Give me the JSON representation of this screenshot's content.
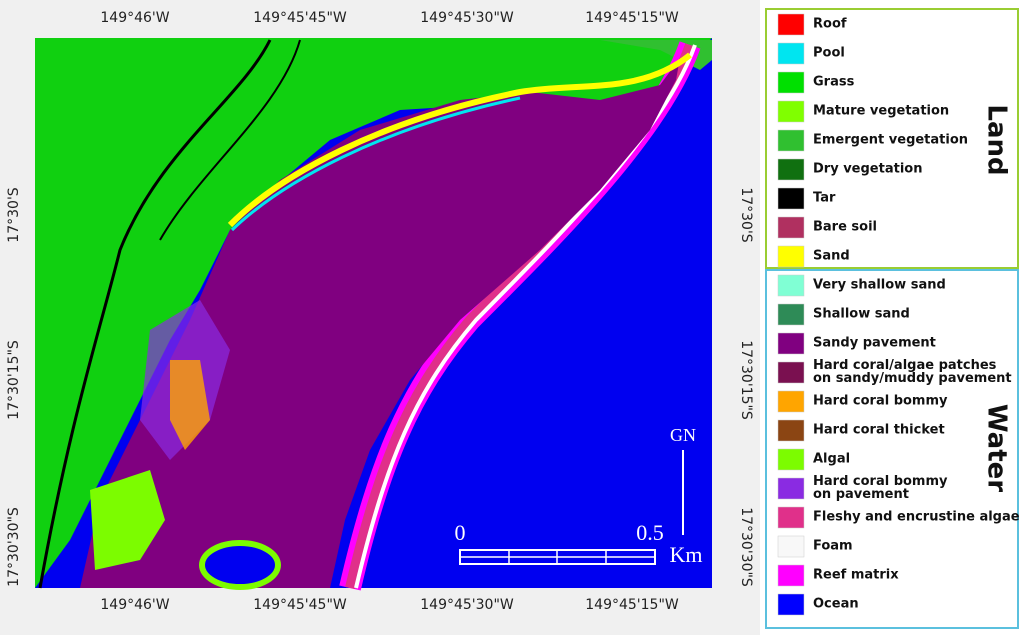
{
  "map": {
    "top_labels": [
      "149°46'W",
      "149°45'45\"W",
      "149°45'30\"W",
      "149°45'15\"W"
    ],
    "bottom_labels": [
      "149°46'W",
      "149°45'45\"W",
      "149°45'30\"W",
      "149°45'15\"W"
    ],
    "left_labels": [
      "17°30'S",
      "17°30'15\"S",
      "17°30'30\"S"
    ],
    "right_labels": [
      "17°30'S",
      "17°30'15\"S",
      "17°30'30\"S"
    ],
    "scale": {
      "start": "0",
      "end": "0.5",
      "unit": "Km"
    },
    "north": "GN"
  },
  "legend": {
    "groups": [
      {
        "name": "Land",
        "items": [
          {
            "label": [
              "Roof"
            ],
            "color": "#ff0000"
          },
          {
            "label": [
              "Pool"
            ],
            "color": "#00e5f0"
          },
          {
            "label": [
              "Grass"
            ],
            "color": "#00e000"
          },
          {
            "label": [
              "Mature vegetation"
            ],
            "color": "#80ff00"
          },
          {
            "label": [
              "Emergent vegetation"
            ],
            "color": "#30c030"
          },
          {
            "label": [
              "Dry vegetation"
            ],
            "color": "#107010"
          },
          {
            "label": [
              "Tar"
            ],
            "color": "#000000"
          },
          {
            "label": [
              "Bare soil"
            ],
            "color": "#b03060"
          },
          {
            "label": [
              "Sand"
            ],
            "color": "#ffff00"
          }
        ]
      },
      {
        "name": "Water",
        "items": [
          {
            "label": [
              "Very shallow sand"
            ],
            "color": "#80ffd4"
          },
          {
            "label": [
              "Shallow sand"
            ],
            "color": "#2e8b57"
          },
          {
            "label": [
              "Sandy pavement"
            ],
            "color": "#800080"
          },
          {
            "label": [
              "Hard coral/algae patches",
              "on sandy/muddy pavement"
            ],
            "color": "#7a1050"
          },
          {
            "label": [
              "Hard coral bommy"
            ],
            "color": "#ffa500"
          },
          {
            "label": [
              "Hard coral thicket"
            ],
            "color": "#8b4513"
          },
          {
            "label": [
              "Algal"
            ],
            "color": "#7cfc00"
          },
          {
            "label": [
              "Hard coral bommy",
              "on pavement"
            ],
            "color": "#8a2be2"
          },
          {
            "label": [
              "Fleshy and encrustine algae"
            ],
            "color": "#e0308a"
          },
          {
            "label": [
              "Foam"
            ],
            "color": "#f8f8f8"
          },
          {
            "label": [
              "Reef matrix"
            ],
            "color": "#ff00ff"
          },
          {
            "label": [
              "Ocean"
            ],
            "color": "#0000ff"
          }
        ]
      }
    ]
  }
}
